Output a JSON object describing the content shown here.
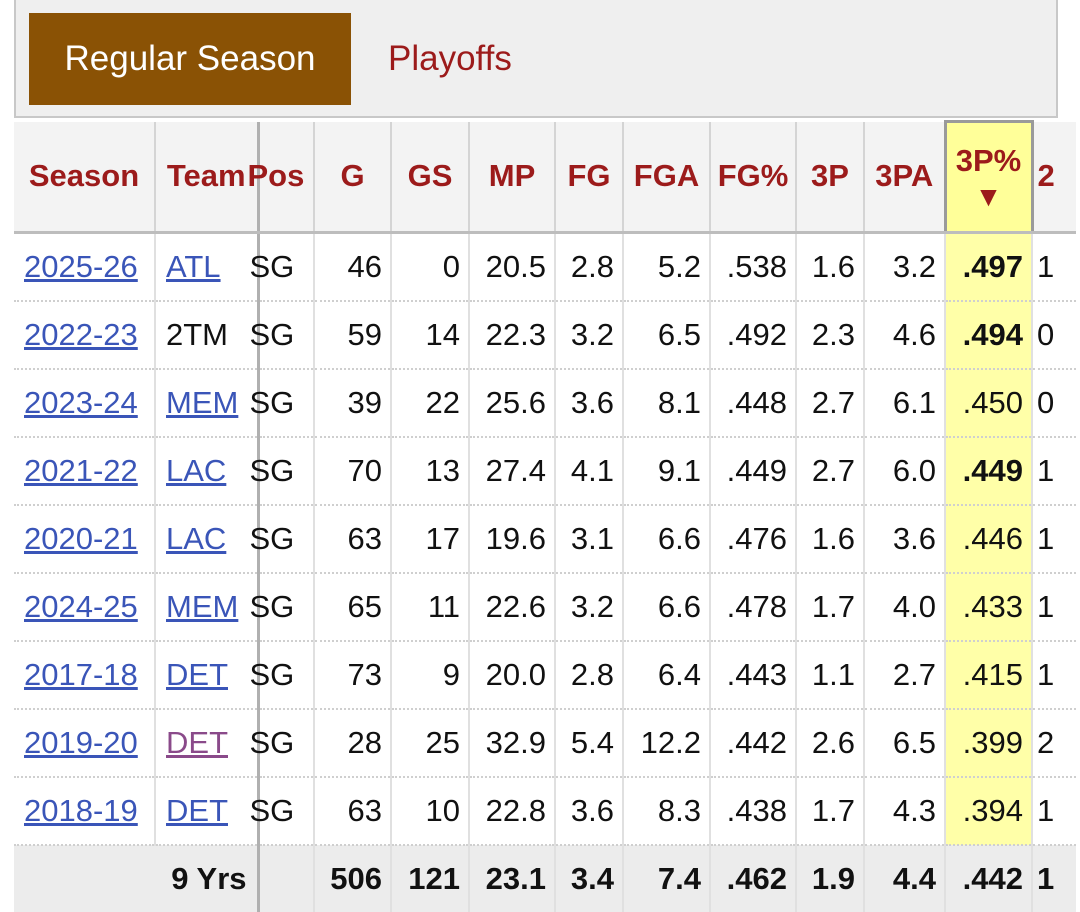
{
  "tabs": {
    "regular": "Regular Season",
    "playoffs": "Playoffs"
  },
  "colors": {
    "accent": "#9c1b1b",
    "tab_active": "#8a5205",
    "sorted_column": "#ffffa8",
    "link": "#3a55b8"
  },
  "headers": [
    "Season",
    "Team",
    "Pos",
    "G",
    "GS",
    "MP",
    "FG",
    "FGA",
    "FG%",
    "3P",
    "3PA",
    "3P%",
    "2"
  ],
  "sort": {
    "column": "3P%",
    "direction_icon": "sort-descending-arrow-icon",
    "glyph": "▼"
  },
  "rows": [
    {
      "season": "2025-26",
      "team": "ATL",
      "team_link": true,
      "pos": "SG",
      "g": "46",
      "gs": "0",
      "mp": "20.5",
      "fg": "2.8",
      "fga": "5.2",
      "fgp": ".538",
      "tp": "1.6",
      "tpa": "3.2",
      "tpp": ".497",
      "tpp_bold": true,
      "next": "1"
    },
    {
      "season": "2022-23",
      "team": "2TM",
      "team_link": false,
      "pos": "SG",
      "g": "59",
      "gs": "14",
      "mp": "22.3",
      "fg": "3.2",
      "fga": "6.5",
      "fgp": ".492",
      "tp": "2.3",
      "tpa": "4.6",
      "tpp": ".494",
      "tpp_bold": true,
      "next": "0"
    },
    {
      "season": "2023-24",
      "team": "MEM",
      "team_link": true,
      "pos": "SG",
      "g": "39",
      "gs": "22",
      "mp": "25.6",
      "fg": "3.6",
      "fga": "8.1",
      "fgp": ".448",
      "tp": "2.7",
      "tpa": "6.1",
      "tpp": ".450",
      "tpp_bold": false,
      "next": "0"
    },
    {
      "season": "2021-22",
      "team": "LAC",
      "team_link": true,
      "pos": "SG",
      "g": "70",
      "gs": "13",
      "mp": "27.4",
      "fg": "4.1",
      "fga": "9.1",
      "fgp": ".449",
      "tp": "2.7",
      "tpa": "6.0",
      "tpp": ".449",
      "tpp_bold": true,
      "next": "1"
    },
    {
      "season": "2020-21",
      "team": "LAC",
      "team_link": true,
      "pos": "SG",
      "g": "63",
      "gs": "17",
      "mp": "19.6",
      "fg": "3.1",
      "fga": "6.6",
      "fgp": ".476",
      "tp": "1.6",
      "tpa": "3.6",
      "tpp": ".446",
      "tpp_bold": false,
      "next": "1"
    },
    {
      "season": "2024-25",
      "team": "MEM",
      "team_link": true,
      "pos": "SG",
      "g": "65",
      "gs": "11",
      "mp": "22.6",
      "fg": "3.2",
      "fga": "6.6",
      "fgp": ".478",
      "tp": "1.7",
      "tpa": "4.0",
      "tpp": ".433",
      "tpp_bold": false,
      "next": "1"
    },
    {
      "season": "2017-18",
      "team": "DET",
      "team_link": true,
      "pos": "SG",
      "g": "73",
      "gs": "9",
      "mp": "20.0",
      "fg": "2.8",
      "fga": "6.4",
      "fgp": ".443",
      "tp": "1.1",
      "tpa": "2.7",
      "tpp": ".415",
      "tpp_bold": false,
      "next": "1"
    },
    {
      "season": "2019-20",
      "team": "DET",
      "team_link": true,
      "team_visited": true,
      "pos": "SG",
      "g": "28",
      "gs": "25",
      "mp": "32.9",
      "fg": "5.4",
      "fga": "12.2",
      "fgp": ".442",
      "tp": "2.6",
      "tpa": "6.5",
      "tpp": ".399",
      "tpp_bold": false,
      "next": "2"
    },
    {
      "season": "2018-19",
      "team": "DET",
      "team_link": true,
      "pos": "SG",
      "g": "63",
      "gs": "10",
      "mp": "22.8",
      "fg": "3.6",
      "fga": "8.3",
      "fgp": ".438",
      "tp": "1.7",
      "tpa": "4.3",
      "tpp": ".394",
      "tpp_bold": false,
      "next": "1"
    }
  ],
  "totals": {
    "label": "9 Yrs",
    "pos": "",
    "g": "506",
    "gs": "121",
    "mp": "23.1",
    "fg": "3.4",
    "fga": "7.4",
    "fgp": ".462",
    "tp": "1.9",
    "tpa": "4.4",
    "tpp": ".442",
    "next": "1"
  }
}
